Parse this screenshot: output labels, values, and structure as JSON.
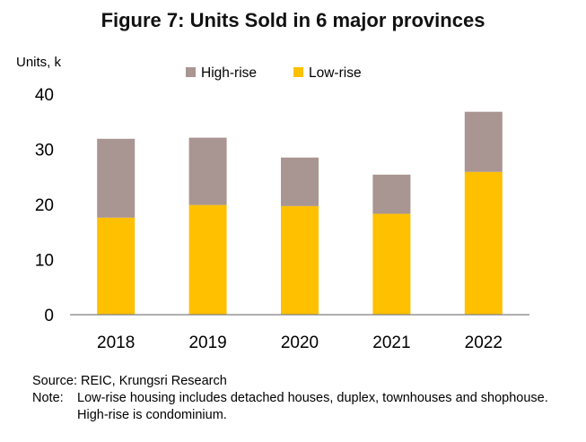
{
  "chart_data": {
    "type": "bar",
    "stacked": true,
    "title": "Figure 7: Units Sold in 6 major provinces",
    "ylabel": "Units, k",
    "xlabel": "",
    "categories": [
      "2018",
      "2019",
      "2020",
      "2021",
      "2022"
    ],
    "series": [
      {
        "name": "Low-rise",
        "color": "#FFC000",
        "values": [
          17.6,
          19.9,
          19.7,
          18.3,
          25.9
        ]
      },
      {
        "name": "High-rise",
        "color": "#A99591",
        "values": [
          14.3,
          12.2,
          8.8,
          7.1,
          10.9
        ]
      }
    ],
    "legend_order": [
      "High-rise",
      "Low-rise"
    ],
    "ylim": [
      0,
      40
    ],
    "yticks": [
      0,
      10,
      20,
      30,
      40
    ],
    "grid": false,
    "legend_position": "top"
  },
  "notes": {
    "source": "Source: REIC, Krungsri Research",
    "note_label": "Note:",
    "note_line1": "Low-rise housing  includes detached houses, duplex, townhouses and shophouse.",
    "note_line2": "High-rise is condominium."
  }
}
